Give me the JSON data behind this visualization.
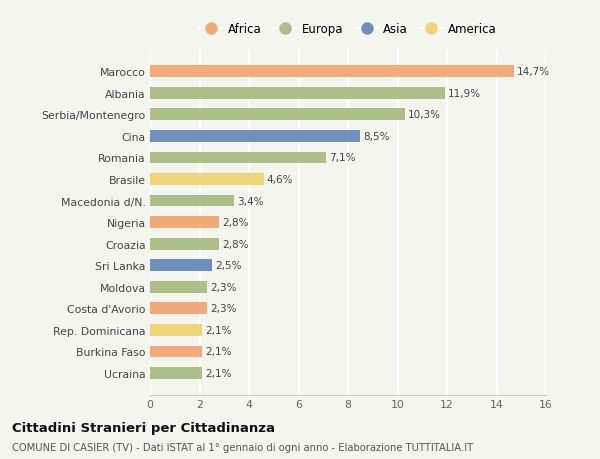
{
  "countries": [
    "Ucraina",
    "Burkina Faso",
    "Rep. Dominicana",
    "Costa d'Avorio",
    "Moldova",
    "Sri Lanka",
    "Croazia",
    "Nigeria",
    "Macedonia d/N.",
    "Brasile",
    "Romania",
    "Cina",
    "Serbia/Montenegro",
    "Albania",
    "Marocco"
  ],
  "values": [
    2.1,
    2.1,
    2.1,
    2.3,
    2.3,
    2.5,
    2.8,
    2.8,
    3.4,
    4.6,
    7.1,
    8.5,
    10.3,
    11.9,
    14.7
  ],
  "continents": [
    "Europa",
    "Africa",
    "America",
    "Africa",
    "Europa",
    "Asia",
    "Europa",
    "Africa",
    "Europa",
    "America",
    "Europa",
    "Asia",
    "Europa",
    "Europa",
    "Africa"
  ],
  "colors": {
    "Africa": "#F2AA78",
    "Europa": "#ADBF88",
    "Asia": "#6E8FBC",
    "America": "#F2D478"
  },
  "legend_order": [
    "Africa",
    "Europa",
    "Asia",
    "America"
  ],
  "xlim": [
    0,
    16
  ],
  "xticks": [
    0,
    2,
    4,
    6,
    8,
    10,
    12,
    14,
    16
  ],
  "title": "Cittadini Stranieri per Cittadinanza",
  "subtitle": "COMUNE DI CASIER (TV) - Dati ISTAT al 1° gennaio di ogni anno - Elaborazione TUTTITALIA.IT",
  "bg_color": "#f5f5f0",
  "grid_color": "#ffffff",
  "bar_height": 0.55
}
